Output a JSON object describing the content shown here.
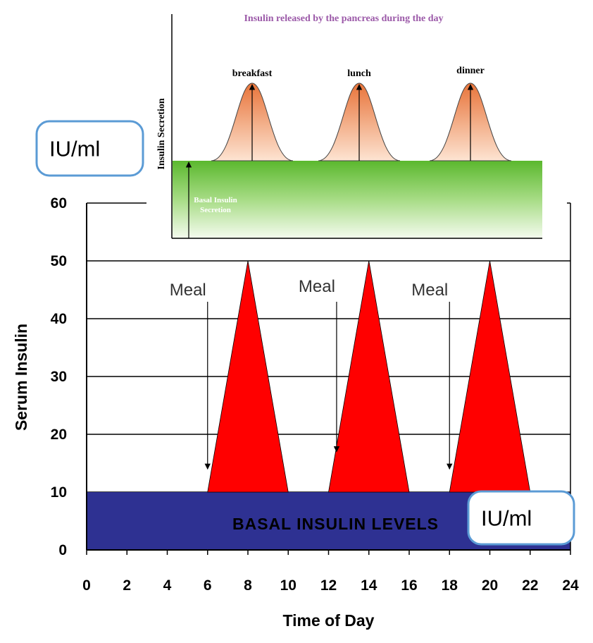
{
  "chart_data": [
    {
      "type": "area",
      "x_label": "Time of Day",
      "y_label": "Serum Insulin",
      "xlim": [
        0,
        24
      ],
      "ylim": [
        0,
        60
      ],
      "xticks": [
        0,
        2,
        4,
        6,
        8,
        10,
        12,
        14,
        16,
        18,
        20,
        22,
        24
      ],
      "yticks": [
        0,
        10,
        20,
        30,
        40,
        50,
        60
      ],
      "grid": true,
      "basal": {
        "label": "BASAL INSULIN LEVELS",
        "value": 10,
        "color": "#2e3192"
      },
      "peaks": [
        {
          "x": [
            6,
            8,
            10
          ],
          "values": [
            10,
            50,
            10
          ],
          "color": "#ff0000"
        },
        {
          "x": [
            12,
            14,
            16
          ],
          "values": [
            10,
            50,
            10
          ],
          "color": "#ff0000"
        },
        {
          "x": [
            18,
            20,
            22
          ],
          "values": [
            10,
            50,
            10
          ],
          "color": "#ff0000"
        }
      ],
      "annotations": [
        {
          "text": "Meal",
          "x": 6,
          "y": 14
        },
        {
          "text": "Meal",
          "x": 12.4,
          "y": 17
        },
        {
          "text": "Meal",
          "x": 18,
          "y": 14
        }
      ]
    },
    {
      "type": "inset",
      "title": "Insulin released by the pancreas during the day",
      "y_label": "Insulin Secretion",
      "meals": [
        "breakfast",
        "lunch",
        "dinner"
      ],
      "basal_label": [
        "Basal Insulin",
        "Secretion"
      ]
    }
  ],
  "unit_labels": [
    "IU/ml",
    "IU/ml"
  ]
}
